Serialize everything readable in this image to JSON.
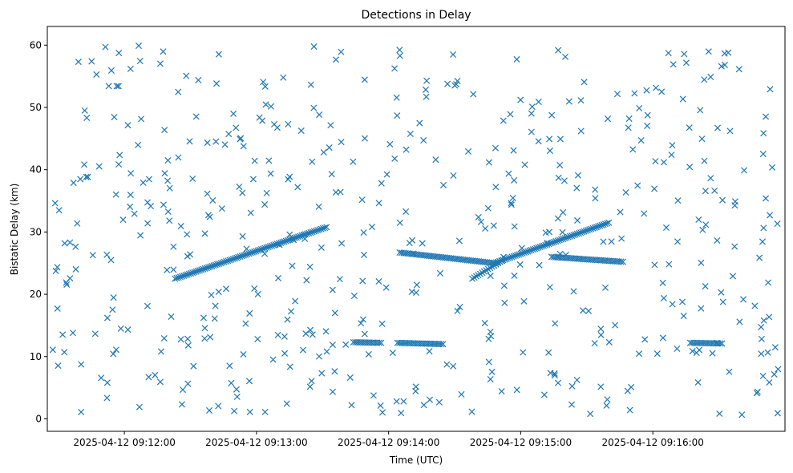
{
  "chart_data": {
    "type": "scatter",
    "title": "Detections in Delay",
    "xlabel": "Time (UTC)",
    "ylabel": "Bistatic Delay (km)",
    "marker": "x",
    "color": "#1f77b4",
    "x_unit": "seconds after 2025-04-12 09:11:25",
    "xlim": [
      0,
      335
    ],
    "ylim": [
      -2,
      63
    ],
    "xticks": [
      {
        "value": 35,
        "label": "2025-04-12 09:12:00"
      },
      {
        "value": 95,
        "label": "2025-04-12 09:13:00"
      },
      {
        "value": 155,
        "label": "2025-04-12 09:14:00"
      },
      {
        "value": 215,
        "label": "2025-04-12 09:15:00"
      },
      {
        "value": 275,
        "label": "2025-04-12 09:16:00"
      }
    ],
    "yticks": [
      0,
      10,
      20,
      30,
      40,
      50,
      60
    ],
    "tracks": [
      {
        "name": "track-1",
        "x_range": [
          58,
          127
        ],
        "y_start": 22.5,
        "y_end": 30.8,
        "step": 0.8
      },
      {
        "name": "track-2",
        "x_range": [
          160,
          203
        ],
        "y_start": 26.7,
        "y_end": 25.0,
        "step": 0.9
      },
      {
        "name": "track-3",
        "x_range": [
          193,
          207
        ],
        "y_start": 22.5,
        "y_end": 25.5,
        "step": 0.9
      },
      {
        "name": "track-4",
        "x_range": [
          203,
          255
        ],
        "y_start": 25.0,
        "y_end": 31.5,
        "step": 0.8
      },
      {
        "name": "track-5",
        "x_range": [
          229,
          262
        ],
        "y_start": 26.0,
        "y_end": 25.2,
        "step": 0.9
      },
      {
        "name": "track-6",
        "x_range": [
          139,
          152
        ],
        "y_start": 12.3,
        "y_end": 12.2,
        "step": 0.9
      },
      {
        "name": "track-7",
        "x_range": [
          159,
          180
        ],
        "y_start": 12.2,
        "y_end": 12.0,
        "step": 0.9
      },
      {
        "name": "track-8",
        "x_range": [
          292,
          307
        ],
        "y_start": 12.2,
        "y_end": 12.1,
        "step": 0.9
      }
    ],
    "clutter": {
      "count": 520,
      "x_range": [
        2,
        332
      ],
      "y_range": [
        0.5,
        60
      ],
      "seed": 4212
    }
  }
}
